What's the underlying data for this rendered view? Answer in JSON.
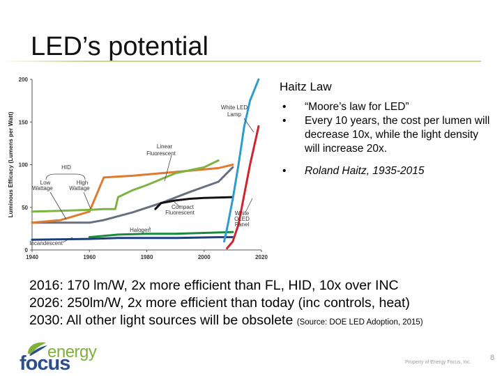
{
  "slide": {
    "title": "LED’s potential",
    "page_number": "8",
    "property_text": "Property of Energy Focus, Inc."
  },
  "haitz": {
    "heading": "Haitz Law",
    "bullets": [
      "“Moore’s law for LED”",
      "Every 10 years, the cost per lumen will decrease 10x, while the light density will increase 20x.",
      "Roland Haitz, 1935-2015"
    ]
  },
  "stats": [
    {
      "text": "2016: 170 lm/W, 2x more efficient than FL, HID, 10x over INC",
      "source": ""
    },
    {
      "text": "2026: 250lm/W, 2x more efficient than today (inc controls, heat)",
      "source": ""
    },
    {
      "text": "2030: All other light sources will be obsolete ",
      "source": "(Source: DOE LED Adoption, 2015)"
    }
  ],
  "logo": {
    "word1": "energy",
    "word2": "focus"
  },
  "chart_data": {
    "type": "line",
    "title": "",
    "xlabel": "",
    "ylabel": "Luminous Efficacy (Lumens per Watt)",
    "xlim": [
      1940,
      2020
    ],
    "ylim": [
      0,
      200
    ],
    "x_ticks": [
      "1940",
      "1960",
      "1980",
      "2000",
      "2020"
    ],
    "y_ticks": [
      "0",
      "50",
      "100",
      "150",
      "200"
    ],
    "series": [
      {
        "name": "Incandescent",
        "color": "#1e3f7a",
        "points": [
          [
            1940,
            12
          ],
          [
            1960,
            13
          ],
          [
            1970,
            14
          ],
          [
            1990,
            14
          ],
          [
            2005,
            15
          ],
          [
            2010,
            15
          ]
        ]
      },
      {
        "name": "Halogen",
        "color": "#1b8a3a",
        "points": [
          [
            1960,
            15
          ],
          [
            1970,
            18
          ],
          [
            1980,
            19
          ],
          [
            1990,
            19
          ],
          [
            2000,
            20
          ],
          [
            2010,
            21
          ]
        ]
      },
      {
        "name": "Low Wattage HID",
        "color": "#6a6f7f",
        "points": [
          [
            1940,
            32
          ],
          [
            1950,
            32
          ],
          [
            1960,
            32
          ],
          [
            1965,
            35
          ],
          [
            1975,
            44
          ],
          [
            1985,
            55
          ],
          [
            1995,
            68
          ],
          [
            2005,
            80
          ],
          [
            2010,
            97
          ]
        ]
      },
      {
        "name": "High Wattage HID",
        "color": "#e07a2c",
        "points": [
          [
            1940,
            32
          ],
          [
            1950,
            35
          ],
          [
            1960,
            45
          ],
          [
            1965,
            85
          ],
          [
            1975,
            87
          ],
          [
            1985,
            90
          ],
          [
            1995,
            93
          ],
          [
            2005,
            96
          ],
          [
            2010,
            100
          ]
        ]
      },
      {
        "name": "Linear Fluorescent",
        "color": "#7cb441",
        "points": [
          [
            1940,
            45
          ],
          [
            1950,
            46
          ],
          [
            1960,
            47
          ],
          [
            1965,
            48
          ],
          [
            1969,
            48
          ],
          [
            1970,
            62
          ],
          [
            1975,
            70
          ],
          [
            1980,
            76
          ],
          [
            1990,
            90
          ],
          [
            2000,
            97
          ],
          [
            2005,
            105
          ]
        ]
      },
      {
        "name": "Compact Fluorescent",
        "color": "#111111",
        "points": [
          [
            1983,
            48
          ],
          [
            1985,
            55
          ],
          [
            1990,
            58
          ],
          [
            1995,
            60
          ],
          [
            2000,
            61
          ],
          [
            2010,
            62
          ]
        ]
      },
      {
        "name": "White LED Lamp",
        "color": "#2e9bd0",
        "points": [
          [
            2007,
            10
          ],
          [
            2008,
            25
          ],
          [
            2010,
            60
          ],
          [
            2012,
            100
          ],
          [
            2014,
            145
          ],
          [
            2016,
            175
          ],
          [
            2019,
            200
          ]
        ]
      },
      {
        "name": "White OLED Panel",
        "color": "#d2232a",
        "points": [
          [
            2008,
            2
          ],
          [
            2010,
            10
          ],
          [
            2012,
            30
          ],
          [
            2014,
            65
          ],
          [
            2016,
            100
          ],
          [
            2018,
            130
          ],
          [
            2019,
            145
          ]
        ]
      }
    ],
    "annotations": [
      {
        "text": "White LED",
        "text2": "Lamp"
      },
      {
        "text": "Linear",
        "text2": "Fluorescent"
      },
      {
        "text": "HID"
      },
      {
        "text": "Low",
        "text2": "Wattage"
      },
      {
        "text": "High",
        "text2": "Wattage"
      },
      {
        "text": "Compact",
        "text2": "Fluorescent"
      },
      {
        "text": "White",
        "text2": "OLED",
        "text3": "Panel"
      },
      {
        "text": "Halogen"
      },
      {
        "text": "Incandescent"
      }
    ]
  }
}
